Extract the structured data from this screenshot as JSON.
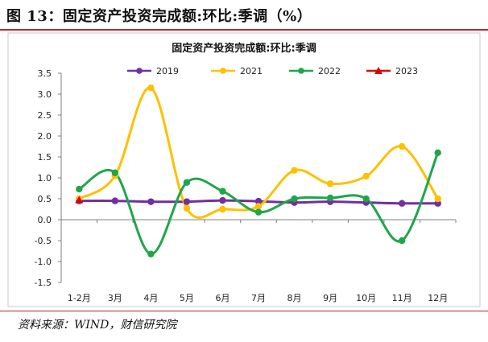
{
  "figure": {
    "title": "图 13：固定资产投资完成额:环比:季调（%）",
    "source": "资料来源：WIND，财信研究院"
  },
  "chart_data": {
    "type": "line",
    "title": "固定资产投资完成额:环比:季调",
    "categories": [
      "1-2月",
      "3月",
      "4月",
      "5月",
      "6月",
      "7月",
      "8月",
      "9月",
      "10月",
      "11月",
      "12月"
    ],
    "ylim": [
      -1.5,
      3.5
    ],
    "yticks": [
      "3.5",
      "3.0",
      "2.5",
      "2.0",
      "1.5",
      "1.0",
      "0.5",
      "0.0",
      "-0.5",
      "-1.0",
      "-1.5"
    ],
    "ytick_values": [
      3.5,
      3.0,
      2.5,
      2.0,
      1.5,
      1.0,
      0.5,
      0.0,
      -0.5,
      -1.0,
      -1.5
    ],
    "legend_position": "top",
    "grid": false,
    "series": [
      {
        "name": "2019",
        "color": "#7030a0",
        "marker": "circle",
        "values": [
          0.45,
          0.45,
          0.43,
          0.43,
          0.46,
          0.44,
          0.41,
          0.43,
          0.41,
          0.39,
          0.39
        ]
      },
      {
        "name": "2021",
        "color": "#ffc000",
        "marker": "circle",
        "values": [
          0.5,
          1.05,
          3.15,
          0.27,
          0.25,
          0.32,
          1.18,
          0.86,
          1.04,
          1.75,
          0.5
        ]
      },
      {
        "name": "2022",
        "color": "#1fa64a",
        "marker": "circle",
        "values": [
          0.73,
          1.12,
          -0.82,
          0.89,
          0.68,
          0.18,
          0.5,
          0.52,
          0.5,
          -0.5,
          1.6
        ]
      },
      {
        "name": "2023",
        "color": "#e00000",
        "marker": "triangle",
        "values": [
          0.47,
          null,
          null,
          null,
          null,
          null,
          null,
          null,
          null,
          null,
          null
        ]
      }
    ]
  }
}
